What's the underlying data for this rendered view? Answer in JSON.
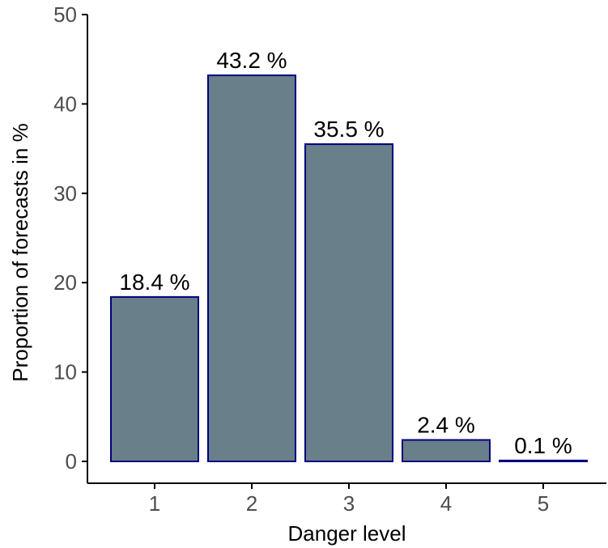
{
  "chart_data": {
    "type": "bar",
    "categories": [
      "1",
      "2",
      "3",
      "4",
      "5"
    ],
    "values": [
      18.4,
      43.2,
      35.5,
      2.4,
      0.1
    ],
    "data_labels": [
      "18.4 %",
      "43.2 %",
      "35.5 %",
      "2.4 %",
      "0.1 %"
    ],
    "xlabel": "Danger level",
    "ylabel": "Proportion of forecasts in %",
    "ylim": [
      0,
      50
    ],
    "yticks": [
      0,
      10,
      20,
      30,
      40,
      50
    ],
    "ytick_labels": [
      "0",
      "10",
      "20",
      "30",
      "40",
      "50"
    ],
    "grid": false,
    "legend": "none",
    "colors": {
      "bar_fill": "#697f89",
      "bar_edge": "#00007f",
      "axis": "#000000",
      "tick_text": "#4d4d4d"
    }
  }
}
